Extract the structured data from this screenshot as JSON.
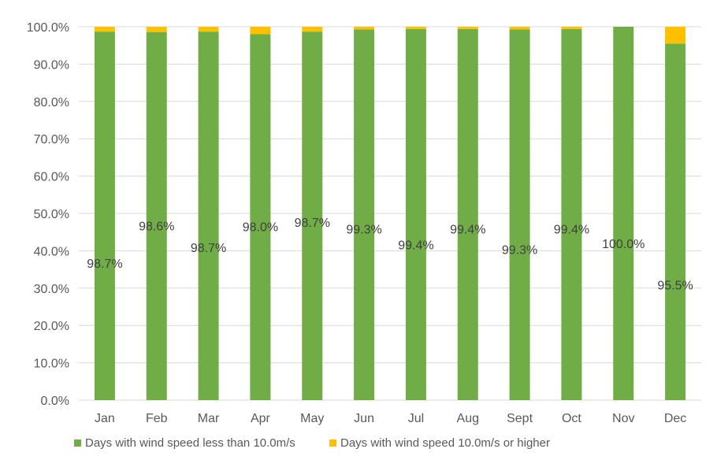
{
  "chart_data": {
    "type": "bar",
    "stacked": true,
    "categories": [
      "Jan",
      "Feb",
      "Mar",
      "Apr",
      "May",
      "Jun",
      "Jul",
      "Aug",
      "Sept",
      "Oct",
      "Nov",
      "Dec"
    ],
    "series": [
      {
        "name": "Days with wind speed less than 10.0m/s",
        "color": "#70AD47",
        "values": [
          98.7,
          98.6,
          98.7,
          98.0,
          98.7,
          99.3,
          99.4,
          99.4,
          99.3,
          99.4,
          100.0,
          95.5
        ],
        "labels": [
          "98.7%",
          "98.6%",
          "98.7%",
          "98.0%",
          "98.7%",
          "99.3%",
          "99.4%",
          "99.4%",
          "99.3%",
          "99.4%",
          "100.0%",
          "95.5%"
        ]
      },
      {
        "name": "Days with wind speed 10.0m/s or higher",
        "color": "#FFC000",
        "values": [
          1.3,
          1.4,
          1.3,
          2.0,
          1.3,
          0.7,
          0.6,
          0.6,
          0.7,
          0.6,
          0.0,
          4.5
        ]
      }
    ],
    "yticks": [
      "0.0%",
      "10.0%",
      "20.0%",
      "30.0%",
      "40.0%",
      "50.0%",
      "60.0%",
      "70.0%",
      "80.0%",
      "90.0%",
      "100.0%"
    ],
    "ylim": [
      0,
      100
    ],
    "grid": true,
    "legend": "bottom-left",
    "title": "",
    "xlabel": "",
    "ylabel": ""
  }
}
